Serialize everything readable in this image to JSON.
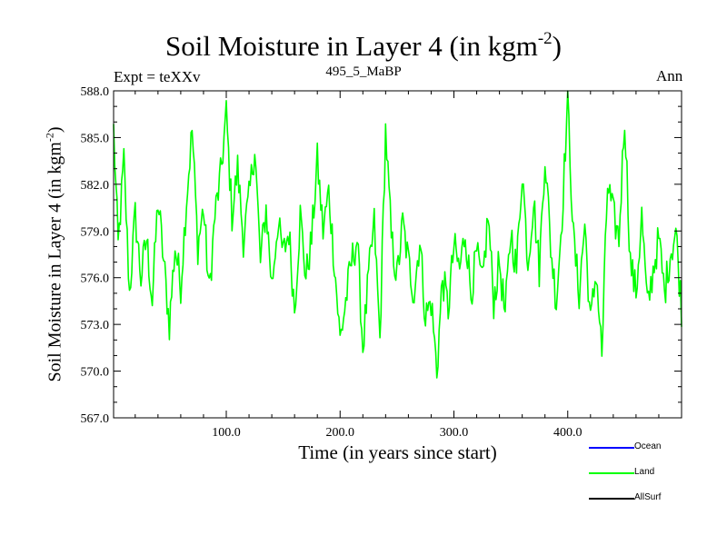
{
  "chart_data": {
    "type": "line",
    "title": "Soil Moisture in Layer 4 (in kgm",
    "title_sup": "-2",
    "title_close": ")",
    "subtitle": "495_5_MaBP",
    "expt_label": "Expt = teXXv",
    "season": "Ann",
    "xlabel": "Time (in years since start)",
    "ylabel": "Soil Moisture in Layer 4 (in kgm",
    "ylabel_sup": "-2",
    "ylabel_close": ")",
    "xlim": [
      1,
      500
    ],
    "ylim": [
      567.0,
      588.0
    ],
    "xticks": [
      100,
      200,
      300,
      400
    ],
    "xtick_labels": [
      "100.0",
      "200.0",
      "300.0",
      "400.0"
    ],
    "yticks": [
      567,
      570,
      573,
      576,
      579,
      582,
      585,
      588
    ],
    "ytick_labels": [
      "567.0",
      "570.0",
      "573.0",
      "576.0",
      "579.0",
      "582.0",
      "585.0",
      "588.0"
    ],
    "series": [
      {
        "name": "Land",
        "color": "#00ff00",
        "anchors_x": [
          1,
          5,
          10,
          15,
          20,
          25,
          30,
          35,
          40,
          45,
          50,
          55,
          60,
          65,
          70,
          75,
          80,
          85,
          90,
          95,
          100,
          105,
          110,
          115,
          120,
          125,
          130,
          135,
          140,
          145,
          150,
          155,
          160,
          165,
          170,
          175,
          180,
          185,
          190,
          195,
          200,
          205,
          210,
          215,
          220,
          225,
          230,
          235,
          240,
          245,
          250,
          255,
          260,
          265,
          270,
          275,
          280,
          285,
          290,
          295,
          300,
          305,
          310,
          315,
          320,
          325,
          330,
          335,
          340,
          345,
          350,
          355,
          360,
          365,
          370,
          375,
          380,
          385,
          390,
          395,
          400,
          405,
          410,
          415,
          420,
          425,
          430,
          435,
          440,
          445,
          450,
          455,
          460,
          465,
          470,
          475,
          480,
          485,
          490,
          495,
          500
        ],
        "anchors_y": [
          585.5,
          578.0,
          583.5,
          575.0,
          580.0,
          576.0,
          578.5,
          574.5,
          581.0,
          577.0,
          573.0,
          578.0,
          575.5,
          581.0,
          585.5,
          578.0,
          580.5,
          575.0,
          580.0,
          582.5,
          586.5,
          580.0,
          583.0,
          578.5,
          581.0,
          584.5,
          577.0,
          580.5,
          575.5,
          579.5,
          577.5,
          579.0,
          574.0,
          580.0,
          576.0,
          578.5,
          583.5,
          579.0,
          581.5,
          577.0,
          572.0,
          574.5,
          577.0,
          578.5,
          571.5,
          576.0,
          579.5,
          572.0,
          585.5,
          578.5,
          576.0,
          579.5,
          577.0,
          575.0,
          578.5,
          573.5,
          574.5,
          570.0,
          576.0,
          574.0,
          578.0,
          576.5,
          579.0,
          575.0,
          577.5,
          575.5,
          580.0,
          574.5,
          577.0,
          573.5,
          579.0,
          576.5,
          583.0,
          577.0,
          581.0,
          576.5,
          584.0,
          578.0,
          574.5,
          580.0,
          587.5,
          578.5,
          575.0,
          579.5,
          573.0,
          576.5,
          571.0,
          582.0,
          580.0,
          578.5,
          586.5,
          577.0,
          575.0,
          580.0,
          574.0,
          576.5,
          578.5,
          575.0,
          577.5,
          579.0,
          574.0
        ]
      },
      {
        "name": "Ocean",
        "color": "#0000ff"
      },
      {
        "name": "AllSurf",
        "color": "#000000"
      }
    ]
  }
}
